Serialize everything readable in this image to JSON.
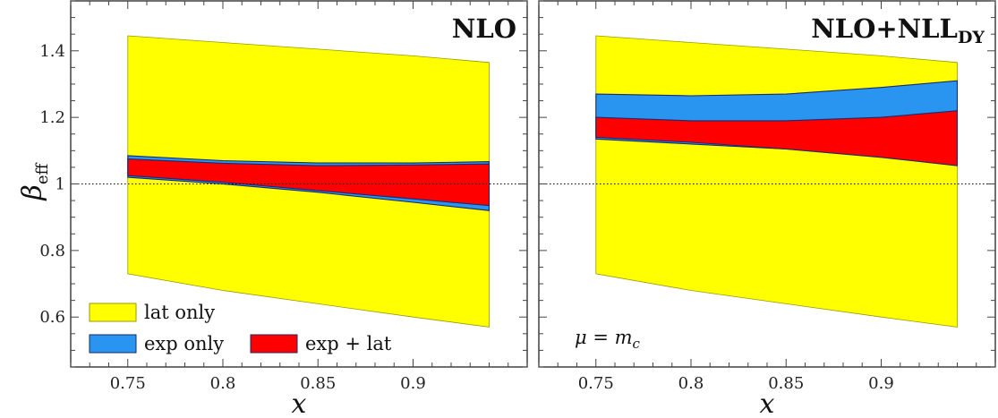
{
  "chart_data": [
    {
      "type": "area",
      "title": "NLO",
      "title_sub": "",
      "xlabel": "x",
      "ylabel": "β",
      "ylabel_sub": "eff",
      "xlim": [
        0.72,
        0.96
      ],
      "ylim": [
        0.45,
        1.55
      ],
      "xticks": [
        0.75,
        0.8,
        0.85,
        0.9
      ],
      "xtick_labels": [
        "0.75",
        "0.8",
        "0.85",
        "0.9"
      ],
      "yticks": [
        0.6,
        0.8,
        1.0,
        1.2,
        1.4
      ],
      "ytick_labels": [
        "0.6",
        "0.8",
        "1",
        "1.2",
        "1.4"
      ],
      "reference_line": 1.0,
      "x": [
        0.75,
        0.8,
        0.85,
        0.9,
        0.94
      ],
      "series": [
        {
          "name": "lat only",
          "color": "#ffff00",
          "lower": [
            0.73,
            0.68,
            0.64,
            0.6,
            0.57
          ],
          "upper": [
            1.445,
            1.425,
            1.405,
            1.385,
            1.365
          ]
        },
        {
          "name": "exp only",
          "color": "#2a95f0",
          "lower": [
            1.02,
            1.0,
            0.975,
            0.945,
            0.92
          ],
          "upper": [
            1.085,
            1.07,
            1.063,
            1.063,
            1.067
          ]
        },
        {
          "name": "exp + lat",
          "color": "#ff0000",
          "lower": [
            1.025,
            1.005,
            0.98,
            0.955,
            0.935
          ],
          "upper": [
            1.075,
            1.062,
            1.055,
            1.057,
            1.06
          ]
        }
      ],
      "legend": {
        "position": "bottom-left",
        "entries": [
          {
            "label": "lat only",
            "color": "#ffff00"
          },
          {
            "label": "exp only",
            "color": "#2a95f0"
          },
          {
            "label": "exp + lat",
            "color": "#ff0000"
          }
        ]
      },
      "annotation": null
    },
    {
      "type": "area",
      "title": "NLO+NLL",
      "title_sub": "DY",
      "xlabel": "x",
      "ylabel": "",
      "ylabel_sub": "",
      "xlim": [
        0.72,
        0.96
      ],
      "ylim": [
        0.45,
        1.55
      ],
      "xticks": [
        0.75,
        0.8,
        0.85,
        0.9
      ],
      "xtick_labels": [
        "0.75",
        "0.8",
        "0.85",
        "0.9"
      ],
      "yticks": [
        0.6,
        0.8,
        1.0,
        1.2,
        1.4
      ],
      "ytick_labels": [],
      "reference_line": 1.0,
      "x": [
        0.75,
        0.8,
        0.85,
        0.9,
        0.94
      ],
      "series": [
        {
          "name": "lat only",
          "color": "#ffff00",
          "lower": [
            0.73,
            0.68,
            0.64,
            0.6,
            0.57
          ],
          "upper": [
            1.445,
            1.425,
            1.405,
            1.385,
            1.365
          ]
        },
        {
          "name": "exp only",
          "color": "#2a95f0",
          "lower": [
            1.135,
            1.12,
            1.105,
            1.09,
            1.075
          ],
          "upper": [
            1.27,
            1.265,
            1.27,
            1.29,
            1.31
          ]
        },
        {
          "name": "exp + lat",
          "color": "#ff0000",
          "lower": [
            1.14,
            1.125,
            1.105,
            1.08,
            1.055
          ],
          "upper": [
            1.2,
            1.19,
            1.19,
            1.2,
            1.22
          ]
        }
      ],
      "legend": null,
      "annotation": {
        "text": "μ = m",
        "sub": "c",
        "position": "bottom-left"
      }
    }
  ]
}
